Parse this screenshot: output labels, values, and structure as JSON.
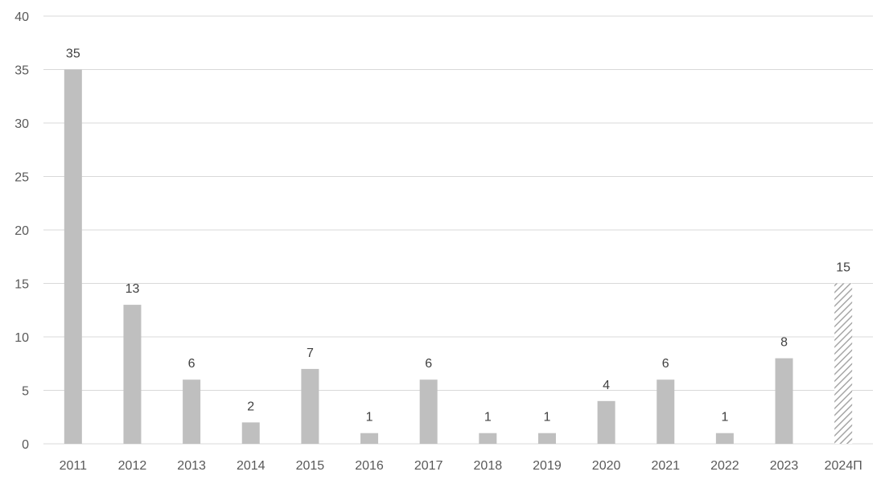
{
  "chart_data": {
    "type": "bar",
    "title": "",
    "xlabel": "",
    "ylabel": "",
    "categories": [
      "2011",
      "2012",
      "2013",
      "2014",
      "2015",
      "2016",
      "2017",
      "2018",
      "2019",
      "2020",
      "2021",
      "2022",
      "2023",
      "2024П"
    ],
    "values": [
      35,
      13,
      6,
      2,
      7,
      1,
      6,
      1,
      1,
      4,
      6,
      1,
      8,
      15
    ],
    "forecast": [
      false,
      false,
      false,
      false,
      false,
      false,
      false,
      false,
      false,
      false,
      false,
      false,
      false,
      true
    ],
    "ylim": [
      0,
      40
    ],
    "yticks": [
      0,
      5,
      10,
      15,
      20,
      25,
      30,
      35,
      40
    ],
    "grid": true,
    "legend": "none",
    "data_labels": true
  },
  "colors": {
    "bar": "#bfbfbf",
    "forecast_hatch": "#a6a6a6",
    "gridline": "#d9d9d9",
    "axis_text": "#595959",
    "label_text": "#404040"
  }
}
